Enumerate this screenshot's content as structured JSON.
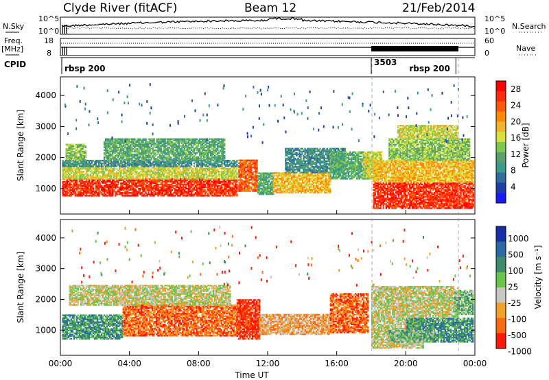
{
  "header": {
    "site": "Clyde River (fitACF)",
    "beam": "Beam 12",
    "date": "21/Feb/2014"
  },
  "top_panels": {
    "nsky_label": "N.Sky",
    "nsky_ticks": [
      "10^5",
      "10^0"
    ],
    "nsearch_label": "N.Search",
    "nsearch_ticks": [
      "10^5",
      "10^0"
    ],
    "freq_label": "Freq.",
    "freq_unit": "[MHz]",
    "freq_ticks": [
      "18",
      "8"
    ],
    "nave_label": "Nave",
    "nave_ticks": [
      "60",
      "0"
    ],
    "cpid_label": "CPID",
    "cpid_segments": [
      {
        "label": "rbsp 200",
        "start_hour": 0.0,
        "end_hour": 18.0
      },
      {
        "label": "3503",
        "start_hour": 18.0,
        "end_hour": 22.9
      },
      {
        "label": "rbsp 200",
        "start_hour": 22.9,
        "end_hour": 24.0
      }
    ]
  },
  "chart_data": [
    {
      "type": "heatmap",
      "panel": "power",
      "ylabel": "Slant Range [km]",
      "xlabel": "",
      "x_ticks": [
        "00:00",
        "04:00",
        "08:00",
        "12:00",
        "16:00",
        "20:00",
        "00:00"
      ],
      "y_ticks": [
        "1000",
        "2000",
        "3000",
        "4000"
      ],
      "xlim_hours": [
        0,
        24
      ],
      "ylim_km": [
        180,
        4600
      ],
      "colorbar": {
        "label": "Power [dB]",
        "ticks": [
          "28",
          "24",
          "20",
          "16",
          "12",
          "8",
          "4"
        ],
        "range": [
          0,
          30
        ],
        "colors": [
          "#1a1aff",
          "#1f3fa8",
          "#2e6ea0",
          "#3b9c8a",
          "#5aa06a",
          "#7ec850",
          "#d8e03a",
          "#f2b42a",
          "#ff8a00",
          "#ff5a0a",
          "#ff2b10",
          "#ff0000"
        ]
      },
      "bands": [
        {
          "t0": 0.1,
          "t1": 10.2,
          "r0": 750,
          "r1": 1300,
          "v": 27
        },
        {
          "t0": 0.1,
          "t1": 10.2,
          "r0": 1300,
          "r1": 1700,
          "v": 17
        },
        {
          "t0": 0.1,
          "t1": 10.2,
          "r0": 1700,
          "r1": 1900,
          "v": 9
        },
        {
          "t0": 0.3,
          "t1": 1.5,
          "r0": 1900,
          "r1": 2400,
          "v": 14
        },
        {
          "t0": 2.5,
          "t1": 9.5,
          "r0": 1900,
          "r1": 2600,
          "v": 10
        },
        {
          "t0": 10.3,
          "t1": 11.4,
          "r0": 900,
          "r1": 1900,
          "v": 24
        },
        {
          "t0": 11.4,
          "t1": 12.3,
          "r0": 800,
          "r1": 1500,
          "v": 10
        },
        {
          "t0": 12.3,
          "t1": 15.6,
          "r0": 850,
          "r1": 1500,
          "v": 20
        },
        {
          "t0": 13.0,
          "t1": 16.5,
          "r0": 1500,
          "r1": 2300,
          "v": 8
        },
        {
          "t0": 15.6,
          "t1": 17.8,
          "r0": 1300,
          "r1": 2200,
          "v": 10
        },
        {
          "t0": 17.5,
          "t1": 18.6,
          "r0": 1300,
          "r1": 2200,
          "v": 17
        },
        {
          "t0": 18.1,
          "t1": 23.9,
          "r0": 350,
          "r1": 1200,
          "v": 28
        },
        {
          "t0": 18.1,
          "t1": 23.9,
          "r0": 1200,
          "r1": 1900,
          "v": 20
        },
        {
          "t0": 19.0,
          "t1": 23.7,
          "r0": 1900,
          "r1": 2600,
          "v": 13
        },
        {
          "t0": 19.5,
          "t1": 23.0,
          "r0": 2600,
          "r1": 3050,
          "v": 15
        }
      ]
    },
    {
      "type": "heatmap",
      "panel": "velocity",
      "ylabel": "Slant Range [km]",
      "xlabel": "Time UT",
      "x_ticks": [
        "00:00",
        "04:00",
        "08:00",
        "12:00",
        "16:00",
        "20:00",
        "00:00"
      ],
      "y_ticks": [
        "1000",
        "2000",
        "3000",
        "4000"
      ],
      "xlim_hours": [
        0,
        24
      ],
      "ylim_km": [
        180,
        4600
      ],
      "colorbar": {
        "label": "Velocity [m s⁻¹]",
        "ticks": [
          "1000",
          "500",
          "100",
          "25",
          "-25",
          "-100",
          "-500",
          "-1000"
        ],
        "colors": [
          "#1a2ea8",
          "#2c6aa6",
          "#3d8c6a",
          "#66c64a",
          "#c8c8c0",
          "#f0a22a",
          "#ff6a10",
          "#ff1a08"
        ]
      },
      "bands": [
        {
          "t0": 0.1,
          "t1": 3.6,
          "r0": 700,
          "r1": 1500,
          "v": 2
        },
        {
          "t0": 3.6,
          "t1": 10.2,
          "r0": 800,
          "r1": 1800,
          "v": 6
        },
        {
          "t0": 0.5,
          "t1": 9.8,
          "r0": 1800,
          "r1": 2450,
          "v": 4
        },
        {
          "t0": 10.2,
          "t1": 11.5,
          "r0": 700,
          "r1": 2000,
          "v": 7
        },
        {
          "t0": 11.5,
          "t1": 15.6,
          "r0": 850,
          "r1": 1500,
          "v": 5
        },
        {
          "t0": 15.6,
          "t1": 17.8,
          "r0": 900,
          "r1": 2200,
          "v": 6
        },
        {
          "t0": 18.0,
          "t1": 21.0,
          "r0": 400,
          "r1": 1400,
          "v": 4
        },
        {
          "t0": 20.0,
          "t1": 23.9,
          "r0": 600,
          "r1": 1400,
          "v": 2
        },
        {
          "t0": 19.0,
          "t1": 21.6,
          "r0": 600,
          "r1": 1000,
          "v": 3
        },
        {
          "t0": 18.0,
          "t1": 23.0,
          "r0": 1400,
          "r1": 2400,
          "v": 4
        },
        {
          "t0": 22.8,
          "t1": 23.9,
          "r0": 1500,
          "r1": 2300,
          "v": 3
        }
      ]
    }
  ]
}
